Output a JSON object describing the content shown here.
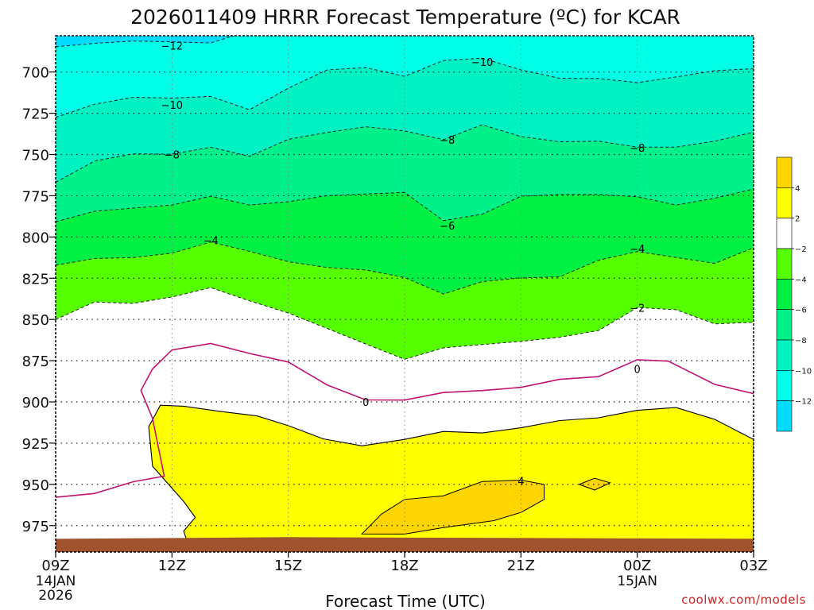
{
  "chart_data": {
    "type": "contour",
    "title": "2026011409 HRRR Forecast Temperature (ºC) for KCAR",
    "xlabel": "Forecast Time (UTC)",
    "credit": "coolwx.com/models",
    "x_axis": {
      "range_hours": [
        0,
        18
      ],
      "ticks": [
        {
          "hour": 0,
          "label": "09Z",
          "sub1": "14JAN",
          "sub2": "2026"
        },
        {
          "hour": 3,
          "label": "12Z",
          "sub1": "",
          "sub2": ""
        },
        {
          "hour": 6,
          "label": "15Z",
          "sub1": "",
          "sub2": ""
        },
        {
          "hour": 9,
          "label": "18Z",
          "sub1": "",
          "sub2": ""
        },
        {
          "hour": 12,
          "label": "21Z",
          "sub1": "",
          "sub2": ""
        },
        {
          "hour": 15,
          "label": "00Z",
          "sub1": "15JAN",
          "sub2": ""
        },
        {
          "hour": 18,
          "label": "03Z",
          "sub1": "",
          "sub2": ""
        }
      ]
    },
    "y_axis": {
      "range_hpa": [
        678,
        991
      ],
      "ticks": [
        {
          "p": 700,
          "label": "700"
        },
        {
          "p": 725,
          "label": "725"
        },
        {
          "p": 750,
          "label": "750"
        },
        {
          "p": 775,
          "label": "775"
        },
        {
          "p": 800,
          "label": "800"
        },
        {
          "p": 825,
          "label": "825"
        },
        {
          "p": 850,
          "label": "850"
        },
        {
          "p": 875,
          "label": "875"
        },
        {
          "p": 900,
          "label": "900"
        },
        {
          "p": 925,
          "label": "925"
        },
        {
          "p": 950,
          "label": "950"
        },
        {
          "p": 975,
          "label": "975"
        }
      ]
    },
    "colorbar": {
      "bins": [
        {
          "color": "#ffd500"
        },
        {
          "color": "#ffff00"
        },
        {
          "color": "#ffffff"
        },
        {
          "color": "#55ff00"
        },
        {
          "color": "#00f044"
        },
        {
          "color": "#00f08a"
        },
        {
          "color": "#00f2c2"
        },
        {
          "color": "#00ffe6"
        },
        {
          "color": "#00dcff"
        }
      ],
      "labels": [
        {
          "value": 4,
          "text": "4"
        },
        {
          "value": 2,
          "text": "2"
        },
        {
          "value": -2,
          "text": "−2"
        },
        {
          "value": -4,
          "text": "−4"
        },
        {
          "value": -6,
          "text": "−6"
        },
        {
          "value": -8,
          "text": "−8"
        },
        {
          "value": -10,
          "text": "−10"
        },
        {
          "value": -12,
          "text": "−12"
        }
      ]
    },
    "contour_labels": [
      {
        "text": "−12",
        "h": 3.0,
        "p": 684
      },
      {
        "text": "−10",
        "h": 11.0,
        "p": 694
      },
      {
        "text": "−10",
        "h": 3.0,
        "p": 720
      },
      {
        "text": "−8",
        "h": 10.1,
        "p": 741
      },
      {
        "text": "−8",
        "h": 3.0,
        "p": 750
      },
      {
        "text": "−8",
        "h": 15.0,
        "p": 746
      },
      {
        "text": "−6",
        "h": 10.1,
        "p": 793
      },
      {
        "text": "−4",
        "h": 4.0,
        "p": 802
      },
      {
        "text": "−4",
        "h": 15.0,
        "p": 807
      },
      {
        "text": "−2",
        "h": 15.0,
        "p": 843
      },
      {
        "text": "0",
        "h": 8.0,
        "p": 900
      },
      {
        "text": "0",
        "h": 15.0,
        "p": 880
      },
      {
        "text": "4",
        "h": 12.0,
        "p": 948
      }
    ],
    "isotherms": {
      "minus12": [
        [
          0,
          684.7
        ],
        [
          1,
          682.6
        ],
        [
          2,
          681.2
        ],
        [
          3,
          681.7
        ],
        [
          4,
          682.4
        ],
        [
          5,
          675
        ],
        [
          18,
          675
        ]
      ],
      "minus10": [
        [
          0,
          727.5
        ],
        [
          1,
          719.5
        ],
        [
          2,
          715.3
        ],
        [
          3,
          715.8
        ],
        [
          4,
          714.8
        ],
        [
          5,
          722.9
        ],
        [
          6,
          709.8
        ],
        [
          7,
          698.7
        ],
        [
          8,
          697.3
        ],
        [
          9,
          702.6
        ],
        [
          10,
          693
        ],
        [
          11,
          691.6
        ],
        [
          12,
          698.7
        ],
        [
          13,
          703.8
        ],
        [
          14,
          703.9
        ],
        [
          15,
          706.4
        ],
        [
          16,
          703
        ],
        [
          17,
          699.2
        ],
        [
          18,
          698
        ]
      ],
      "minus8": [
        [
          0,
          766.9
        ],
        [
          1,
          754
        ],
        [
          2,
          749.6
        ],
        [
          3,
          749.8
        ],
        [
          4,
          745.6
        ],
        [
          5,
          751.1
        ],
        [
          6,
          740.8
        ],
        [
          7,
          736.6
        ],
        [
          8,
          733.2
        ],
        [
          9,
          735.7
        ],
        [
          10,
          741
        ],
        [
          11,
          732
        ],
        [
          12,
          739.1
        ],
        [
          13,
          742.3
        ],
        [
          14,
          741.9
        ],
        [
          15,
          745.5
        ],
        [
          16,
          745.5
        ],
        [
          17,
          741.9
        ],
        [
          18,
          736.5
        ]
      ],
      "minus6": [
        [
          0,
          790.8
        ],
        [
          1,
          784.4
        ],
        [
          2,
          782.5
        ],
        [
          3,
          780.6
        ],
        [
          4,
          775.3
        ],
        [
          5,
          780.6
        ],
        [
          6,
          778.6
        ],
        [
          7,
          775
        ],
        [
          8,
          773.9
        ],
        [
          9,
          773
        ],
        [
          10,
          790.1
        ],
        [
          11,
          786.2
        ],
        [
          12,
          775.3
        ],
        [
          13,
          774.2
        ],
        [
          14,
          774.2
        ],
        [
          15,
          775.6
        ],
        [
          16,
          780.6
        ],
        [
          17,
          776.5
        ],
        [
          18,
          770.9
        ]
      ],
      "minus4": [
        [
          0,
          817.1
        ],
        [
          1,
          813
        ],
        [
          2,
          812.5
        ],
        [
          3,
          809.8
        ],
        [
          4,
          803.1
        ],
        [
          5,
          808.7
        ],
        [
          6,
          815
        ],
        [
          7,
          818.5
        ],
        [
          8,
          820
        ],
        [
          9,
          824.6
        ],
        [
          10,
          834.6
        ],
        [
          11,
          827.1
        ],
        [
          12,
          824.8
        ],
        [
          13,
          824.2
        ],
        [
          14,
          814.1
        ],
        [
          15,
          808.9
        ],
        [
          16,
          812.4
        ],
        [
          17,
          816
        ],
        [
          18,
          806.5
        ]
      ],
      "minus2": [
        [
          0,
          850
        ],
        [
          1,
          839.4
        ],
        [
          2,
          840.3
        ],
        [
          3,
          836.4
        ],
        [
          4,
          830.7
        ],
        [
          5,
          838.7
        ],
        [
          6,
          846.1
        ],
        [
          7,
          855.4
        ],
        [
          8,
          864.9
        ],
        [
          9,
          874.2
        ],
        [
          10,
          867.2
        ],
        [
          11,
          865.2
        ],
        [
          12,
          863.3
        ],
        [
          13,
          860.8
        ],
        [
          14,
          856.7
        ],
        [
          15,
          842.8
        ],
        [
          16,
          844.1
        ],
        [
          17,
          852.7
        ],
        [
          18,
          851.7
        ]
      ],
      "zero": [
        [
          0,
          957.8
        ],
        [
          1,
          955.5
        ],
        [
          2,
          948.4
        ],
        [
          2.8,
          945
        ],
        [
          2.5,
          910
        ],
        [
          2.2,
          893
        ],
        [
          2.5,
          880
        ],
        [
          3,
          868.5
        ],
        [
          4,
          864.6
        ],
        [
          5,
          870.6
        ],
        [
          6,
          875.8
        ],
        [
          7,
          889.7
        ],
        [
          8,
          898.8
        ],
        [
          9,
          898.9
        ],
        [
          10,
          894.3
        ],
        [
          11,
          893.1
        ],
        [
          12,
          891.2
        ],
        [
          13,
          886.3
        ],
        [
          14,
          884.7
        ],
        [
          15,
          874.4
        ],
        [
          15.8,
          875.3
        ],
        [
          17,
          889.4
        ],
        [
          18,
          895
        ]
      ]
    },
    "warm_regions": {
      "plus2": [
        [
          2.7,
          902
        ],
        [
          3.3,
          902.6
        ],
        [
          4.2,
          905.6
        ],
        [
          5.2,
          908.5
        ],
        [
          6,
          914.4
        ],
        [
          6.9,
          922.4
        ],
        [
          7.9,
          926.6
        ],
        [
          9,
          922.7
        ],
        [
          10,
          917.9
        ],
        [
          11,
          918.8
        ],
        [
          12,
          915.7
        ],
        [
          13,
          911.3
        ],
        [
          14,
          909.6
        ],
        [
          15,
          905.1
        ],
        [
          16,
          903.4
        ],
        [
          17,
          910.6
        ],
        [
          18,
          922.7
        ],
        [
          18,
          990
        ],
        [
          3.4,
          990
        ],
        [
          3.4,
          985
        ],
        [
          3.3,
          978.4
        ],
        [
          3.6,
          970
        ],
        [
          3.3,
          960.3
        ],
        [
          2.5,
          939
        ],
        [
          2.4,
          915
        ],
        [
          2.7,
          902
        ]
      ],
      "plus4_main": [
        [
          7.9,
          980
        ],
        [
          8.4,
          968.1
        ],
        [
          9,
          959.1
        ],
        [
          10,
          956.9
        ],
        [
          11,
          948.3
        ],
        [
          12,
          947.4
        ],
        [
          12.6,
          950
        ],
        [
          12.6,
          959.1
        ],
        [
          12,
          967
        ],
        [
          11.3,
          972
        ],
        [
          10,
          976.2
        ],
        [
          9,
          980.1
        ],
        [
          7.9,
          980
        ]
      ],
      "plus4_small": [
        [
          13.5,
          950
        ],
        [
          13.9,
          946.3
        ],
        [
          14.3,
          949
        ],
        [
          13.9,
          953.4
        ],
        [
          13.5,
          950
        ]
      ]
    },
    "ground_color": "#a0522d"
  }
}
